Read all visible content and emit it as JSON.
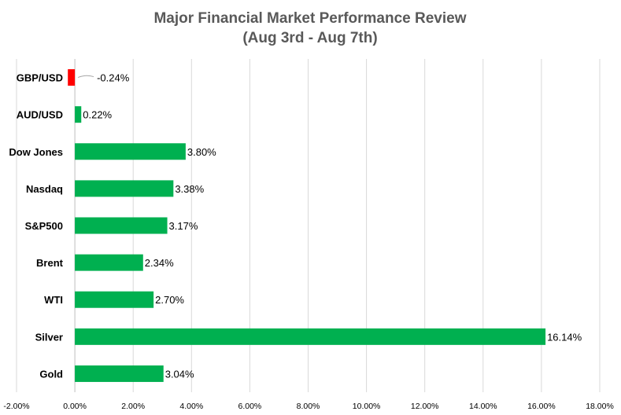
{
  "chart_data": {
    "type": "bar",
    "orientation": "horizontal",
    "title": "Major Financial Market Performance Review",
    "subtitle": "(Aug 3rd - Aug 7th)",
    "categories": [
      "GBP/USD",
      "AUD/USD",
      "Dow Jones",
      "Nasdaq",
      "S&P500",
      "Brent",
      "WTI",
      "Silver",
      "Gold"
    ],
    "values": [
      -0.24,
      0.22,
      3.8,
      3.38,
      3.17,
      2.34,
      2.7,
      16.14,
      3.04
    ],
    "data_labels": [
      "-0.24%",
      "0.22%",
      "3.80%",
      "3.38%",
      "3.17%",
      "2.34%",
      "2.70%",
      "16.14%",
      "3.04%"
    ],
    "xlim": [
      -2,
      18
    ],
    "x_ticks": [
      -2,
      0,
      2,
      4,
      6,
      8,
      10,
      12,
      14,
      16,
      18
    ],
    "x_tick_labels": [
      "-2.00%",
      "0.00%",
      "2.00%",
      "4.00%",
      "6.00%",
      "8.00%",
      "10.00%",
      "12.00%",
      "14.00%",
      "16.00%",
      "18.00%"
    ],
    "grid": true,
    "legend": "none",
    "colors": {
      "positive": "#00b050",
      "negative": "#ff0000"
    }
  }
}
